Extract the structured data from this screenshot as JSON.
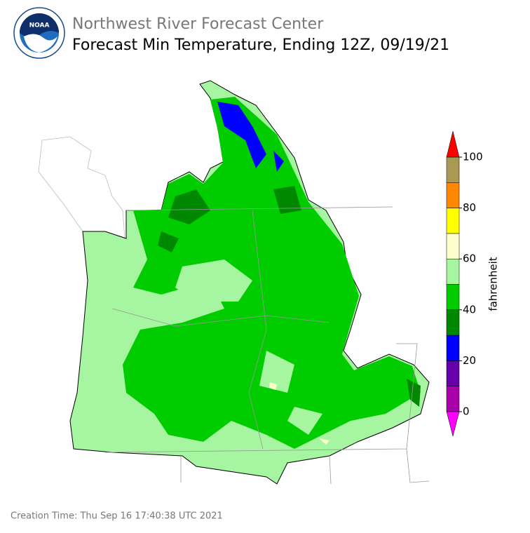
{
  "header": {
    "organization": "Northwest River Forecast Center",
    "title": "Forecast Min Temperature, Ending 12Z, 09/19/21"
  },
  "colorbar": {
    "label": "fahrenheit",
    "ticks": [
      0,
      20,
      40,
      60,
      80,
      100
    ],
    "bounds": [
      0,
      10,
      20,
      30,
      40,
      50,
      60,
      70,
      80,
      90,
      100
    ],
    "colors": [
      "#aa00aa",
      "#6600aa",
      "#0000ff",
      "#008800",
      "#00cc00",
      "#a6f5a0",
      "#ffffcc",
      "#ffff00",
      "#ff8800",
      "#aa9955"
    ],
    "under_color": "#ff00ff",
    "over_color": "#ff0000"
  },
  "footer": {
    "creation": "Creation Time: Thu Sep 16 17:40:38 UTC 2021"
  }
}
